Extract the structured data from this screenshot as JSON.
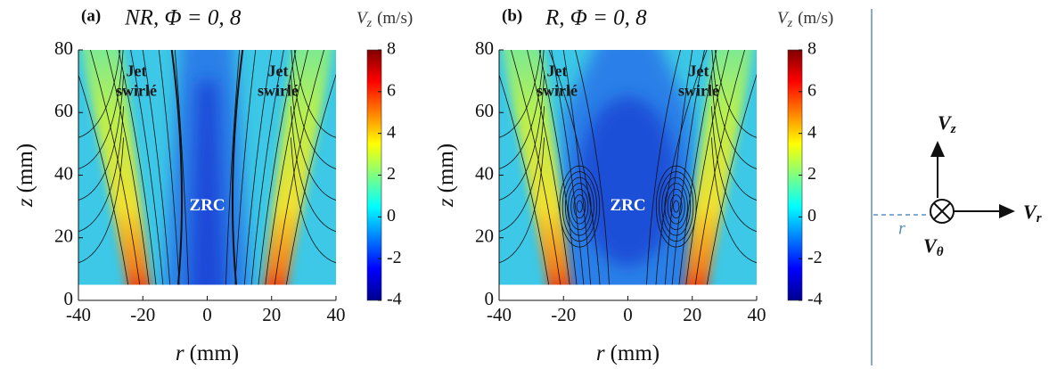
{
  "chart_data": [
    {
      "type": "heatmap",
      "panel_label": "(a)",
      "title": "NR, Φ = 0, 8",
      "xlabel": {
        "symbol": "r",
        "unit": "(mm)"
      },
      "ylabel": {
        "symbol": "z",
        "unit": "(mm)"
      },
      "xlim": [
        -40,
        40
      ],
      "xticks": [
        -40,
        -20,
        0,
        20,
        40
      ],
      "ylim": [
        0,
        80
      ],
      "yticks": [
        0,
        20,
        40,
        60,
        80
      ],
      "colorbar": {
        "symbol": "V",
        "subscript": "z",
        "unit": "(m/s)",
        "lim": [
          -4,
          8
        ],
        "ticks": [
          -4,
          -2,
          0,
          2,
          4,
          6,
          8
        ]
      },
      "colormap": "jet",
      "recirculation": false,
      "annotations": [
        [
          "Jet",
          "swirlé"
        ],
        [
          "Jet",
          "swirlé"
        ],
        [
          "ZRC"
        ]
      ]
    },
    {
      "type": "heatmap",
      "panel_label": "(b)",
      "title": "R, Φ = 0, 8",
      "xlabel": {
        "symbol": "r",
        "unit": "(mm)"
      },
      "ylabel": {
        "symbol": "z",
        "unit": "(mm)"
      },
      "xlim": [
        -40,
        40
      ],
      "xticks": [
        -40,
        -20,
        0,
        20,
        40
      ],
      "ylim": [
        0,
        80
      ],
      "yticks": [
        0,
        20,
        40,
        60,
        80
      ],
      "colorbar": {
        "symbol": "V",
        "subscript": "z",
        "unit": "(m/s)",
        "lim": [
          -4,
          8
        ],
        "ticks": [
          -4,
          -2,
          0,
          2,
          4,
          6,
          8
        ]
      },
      "colormap": "jet",
      "recirculation": true,
      "annotations": [
        [
          "Jet",
          "swirlé"
        ],
        [
          "Jet",
          "swirlé"
        ],
        [
          "ZRC"
        ]
      ]
    }
  ],
  "diagram": {
    "vz": {
      "symbol": "V",
      "subscript": "z"
    },
    "vr": {
      "symbol": "V",
      "subscript": "r"
    },
    "vtheta": {
      "symbol": "V",
      "subscript": "θ"
    },
    "r": "r"
  }
}
